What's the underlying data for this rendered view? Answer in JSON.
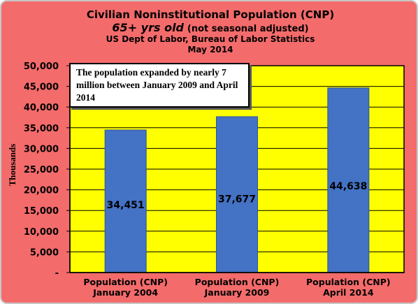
{
  "title": {
    "line1": "Civilian Noninstitutional Population (CNP)",
    "line2_bold": "65+ yrs old",
    "line2_note": "(not seasonal adjusted)",
    "line3": "US Dept of Labor, Bureau of Labor Statistics",
    "line4": "May 2014"
  },
  "annotation": "The population expanded by nearly 7 million between January 2009 and April 2014",
  "colors": {
    "background": "#f46b6b",
    "plot_area": "#ffff00",
    "bar": "#4472c4"
  },
  "chart_data": {
    "type": "bar",
    "title": "Civilian Noninstitutional Population (CNP)",
    "ylabel": "Thousands",
    "ylim": [
      0,
      50000
    ],
    "grid": true,
    "categories": [
      [
        "Population (CNP)",
        "January 2004"
      ],
      [
        "Population (CNP)",
        "January 2009"
      ],
      [
        "Population (CNP)",
        "April 2014"
      ]
    ],
    "values": [
      34451,
      37677,
      44638
    ],
    "value_labels": [
      "34,451",
      "37,677",
      "44,638"
    ],
    "yticks": [
      {
        "value": 0,
        "label": "-"
      },
      {
        "value": 5000,
        "label": "5,000"
      },
      {
        "value": 10000,
        "label": "10,000"
      },
      {
        "value": 15000,
        "label": "15,000"
      },
      {
        "value": 20000,
        "label": "20,000"
      },
      {
        "value": 25000,
        "label": "25,000"
      },
      {
        "value": 30000,
        "label": "30,000"
      },
      {
        "value": 35000,
        "label": "35,000"
      },
      {
        "value": 40000,
        "label": "40,000"
      },
      {
        "value": 45000,
        "label": "45,000"
      },
      {
        "value": 50000,
        "label": "50,000"
      }
    ]
  }
}
